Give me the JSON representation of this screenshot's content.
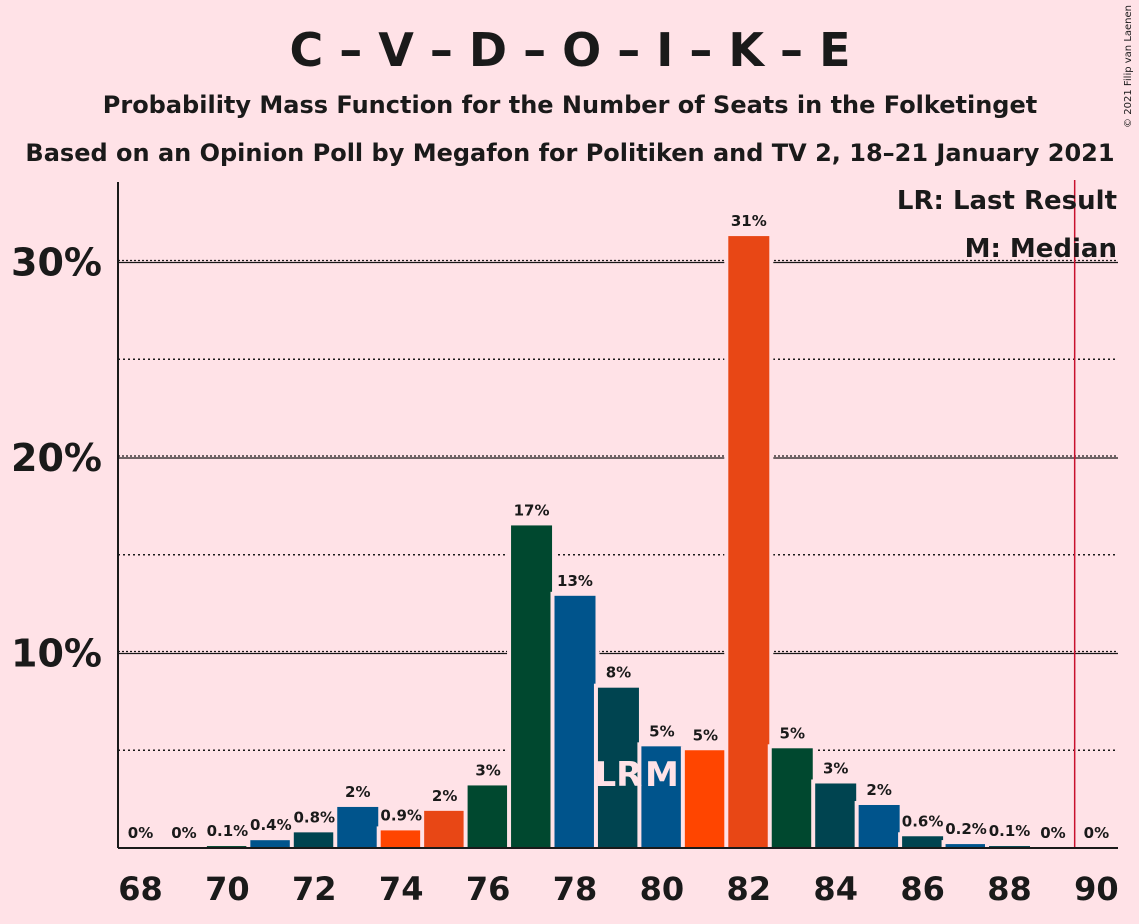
{
  "title": "C – V – D – O – I – K – E",
  "subtitle1": "Probability Mass Function for the Number of Seats in the Folketinget",
  "subtitle2": "Based on an Opinion Poll by Megafon for Politiken and TV 2, 18–21 January 2021",
  "copyright": "© 2021 Filip van Laenen",
  "legend": {
    "lr": "LR: Last Result",
    "m": "M: Median"
  },
  "chart_data": {
    "type": "bar",
    "x": [
      68,
      69,
      70,
      71,
      72,
      73,
      74,
      75,
      76,
      77,
      78,
      79,
      80,
      81,
      82,
      83,
      84,
      85,
      86,
      87,
      88,
      89,
      90
    ],
    "values": [
      0,
      0,
      0.1,
      0.4,
      0.8,
      2.1,
      0.9,
      1.9,
      3.2,
      16.5,
      12.9,
      8.2,
      5.2,
      5.0,
      31.3,
      5.1,
      3.3,
      2.2,
      0.6,
      0.2,
      0.1,
      0,
      0
    ],
    "labels": [
      "0%",
      "0%",
      "0.1%",
      "0.4%",
      "0.8%",
      "2%",
      "0.9%",
      "2%",
      "3%",
      "17%",
      "13%",
      "8%",
      "5%",
      "5%",
      "31%",
      "5%",
      "3%",
      "2%",
      "0.6%",
      "0.2%",
      "0.1%",
      "0%",
      "0%"
    ],
    "colors": [
      "#00482F",
      "#00548C",
      "#00482F",
      "#00548C",
      "#004450",
      "#00548C",
      "#FF4500",
      "#E84715",
      "#00482F",
      "#00482F",
      "#00548C",
      "#004450",
      "#00548C",
      "#FF4500",
      "#E84715",
      "#00482F",
      "#004450",
      "#00548C",
      "#004450",
      "#00548C",
      "#004450",
      "#00548C",
      "#00482F"
    ],
    "x_tick_labels": [
      "68",
      "70",
      "72",
      "74",
      "76",
      "78",
      "80",
      "82",
      "84",
      "86",
      "88",
      "90"
    ],
    "x_ticks": [
      68,
      70,
      72,
      74,
      76,
      78,
      80,
      82,
      84,
      86,
      88,
      90
    ],
    "y_ticks": [
      10,
      20,
      30
    ],
    "y_tick_labels": [
      "10%",
      "20%",
      "30%"
    ],
    "y_minor_ticks": [
      5,
      15,
      25
    ],
    "ylim": [
      0,
      34
    ],
    "last_result": 79,
    "last_result_mark": "LR",
    "median": 80,
    "median_mark": "M",
    "majority_line": 89.5,
    "legend_position": "top-right",
    "grid": true
  }
}
